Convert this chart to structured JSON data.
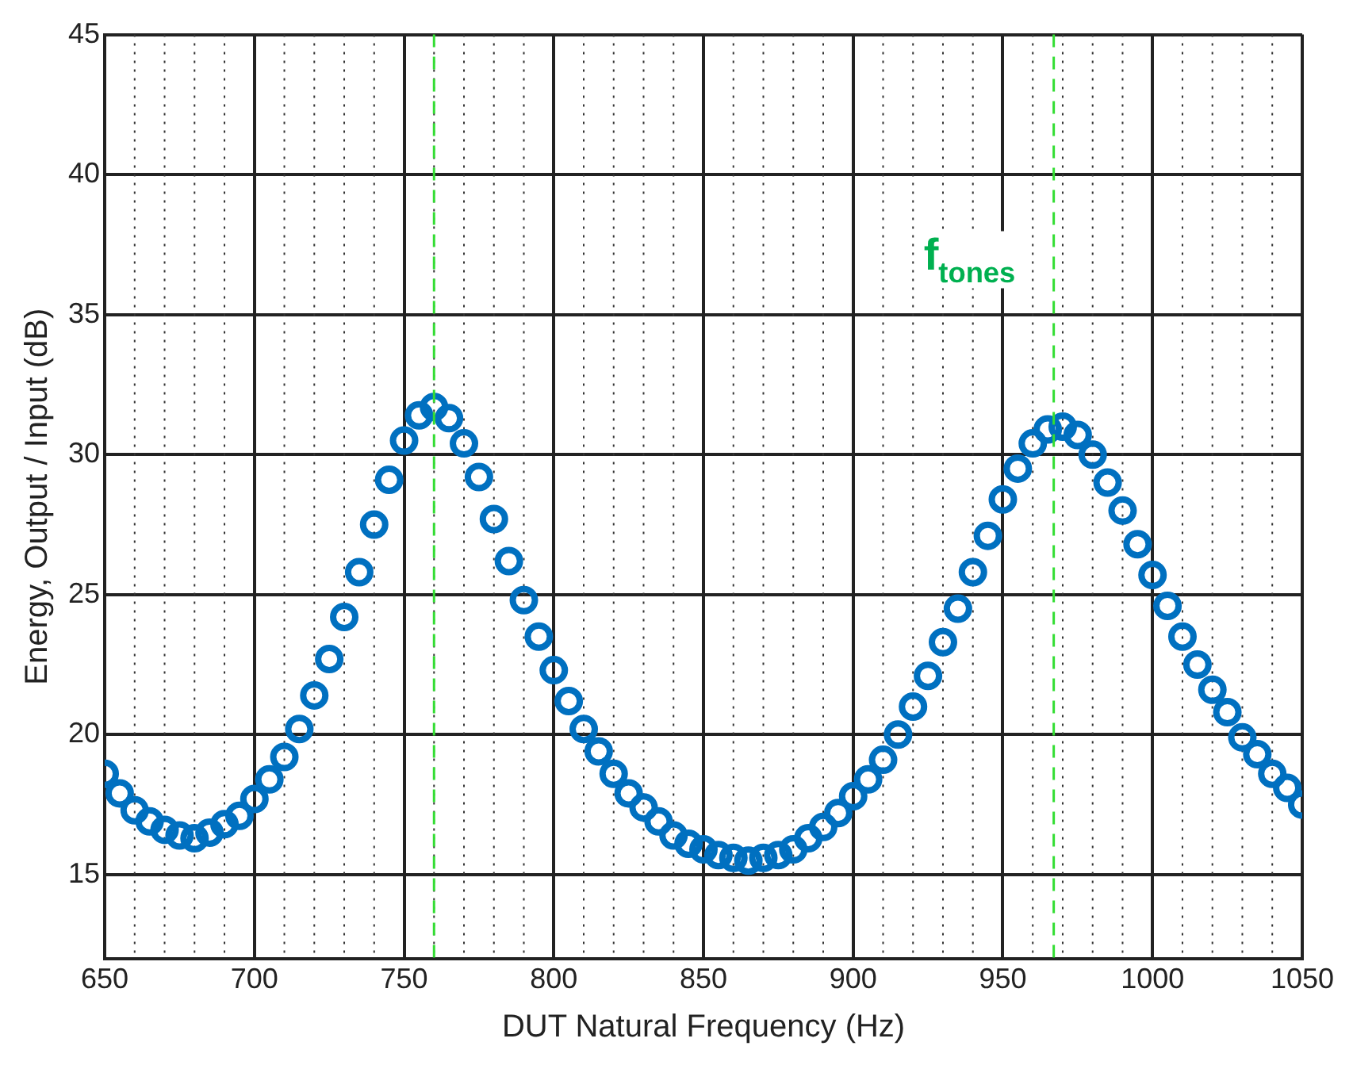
{
  "chart_data": {
    "type": "scatter",
    "xlabel": "DUT Natural Frequency (Hz)",
    "ylabel": "Energy, Output / Input (dB)",
    "x": [
      650,
      655,
      660,
      665,
      670,
      675,
      680,
      685,
      690,
      695,
      700,
      705,
      710,
      715,
      720,
      725,
      730,
      735,
      740,
      745,
      750,
      755,
      760,
      765,
      770,
      775,
      780,
      785,
      790,
      795,
      800,
      805,
      810,
      815,
      820,
      825,
      830,
      835,
      840,
      845,
      850,
      855,
      860,
      865,
      870,
      875,
      880,
      885,
      890,
      895,
      900,
      905,
      910,
      915,
      920,
      925,
      930,
      935,
      940,
      945,
      950,
      955,
      960,
      965,
      970,
      975,
      980,
      985,
      990,
      995,
      1000,
      1005,
      1010,
      1015,
      1020,
      1025,
      1030,
      1035,
      1040,
      1045,
      1050
    ],
    "series": [
      {
        "color": "#0070c0",
        "values": [
          18.6,
          17.9,
          17.3,
          16.9,
          16.6,
          16.4,
          16.3,
          16.5,
          16.8,
          17.1,
          17.7,
          18.4,
          19.2,
          20.2,
          21.4,
          22.7,
          24.2,
          25.8,
          27.5,
          29.1,
          30.5,
          31.4,
          31.7,
          31.3,
          30.4,
          29.2,
          27.7,
          26.2,
          24.8,
          23.5,
          22.3,
          21.2,
          20.2,
          19.4,
          18.6,
          17.9,
          17.4,
          16.9,
          16.4,
          16.1,
          15.9,
          15.7,
          15.6,
          15.5,
          15.6,
          15.7,
          15.9,
          16.3,
          16.7,
          17.2,
          17.8,
          18.4,
          19.1,
          20.0,
          21.0,
          22.1,
          23.3,
          24.5,
          25.8,
          27.1,
          28.4,
          29.5,
          30.4,
          30.9,
          31.0,
          30.7,
          30.0,
          29.0,
          28.0,
          26.8,
          25.7,
          24.6,
          23.5,
          22.5,
          21.6,
          20.8,
          19.9,
          19.3,
          18.6,
          18.1,
          17.5
        ]
      }
    ],
    "xlim": [
      650,
      1050
    ],
    "xticks": [
      650,
      {
        "value": 660,
        "label": null
      },
      {
        "value": 670,
        "label": null
      },
      {
        "value": 680,
        "label": null
      },
      {
        "value": 690,
        "label": null
      },
      700,
      {
        "value": 710,
        "label": null
      },
      {
        "value": 720,
        "label": null
      },
      {
        "value": 730,
        "label": null
      },
      {
        "value": 740,
        "label": null
      },
      750,
      {
        "value": 760,
        "label": null
      },
      {
        "value": 770,
        "label": null
      },
      {
        "value": 780,
        "label": null
      },
      {
        "value": 790,
        "label": null
      },
      800,
      {
        "value": 810,
        "label": null
      },
      {
        "value": 820,
        "label": null
      },
      {
        "value": 830,
        "label": null
      },
      {
        "value": 840,
        "label": null
      },
      850,
      {
        "value": 860,
        "label": null
      },
      {
        "value": 870,
        "label": null
      },
      {
        "value": 880,
        "label": null
      },
      {
        "value": 890,
        "label": null
      },
      900,
      {
        "value": 910,
        "label": null
      },
      {
        "value": 920,
        "label": null
      },
      {
        "value": 930,
        "label": null
      },
      {
        "value": 940,
        "label": null
      },
      950,
      {
        "value": 960,
        "label": null
      },
      {
        "value": 970,
        "label": null
      },
      {
        "value": 980,
        "label": null
      },
      {
        "value": 990,
        "label": null
      },
      1000,
      {
        "value": 1010,
        "label": null
      },
      {
        "value": 1020,
        "label": null
      },
      {
        "value": 1030,
        "label": null
      },
      {
        "value": 1040,
        "label": null
      },
      1050
    ],
    "ylim": [
      12,
      45
    ],
    "yticks": [
      15,
      20,
      25,
      30,
      35,
      40,
      45
    ],
    "ref_lines": [
      {
        "axis": "x",
        "value": 760,
        "label": null,
        "color": "#33dd33",
        "line_style": "dashed"
      },
      {
        "axis": "x",
        "value": 967,
        "label": "f$_{tones}$",
        "color": "#33dd33",
        "line_style": "dashed"
      }
    ],
    "grid": true,
    "marker": "circle",
    "legend": false
  }
}
